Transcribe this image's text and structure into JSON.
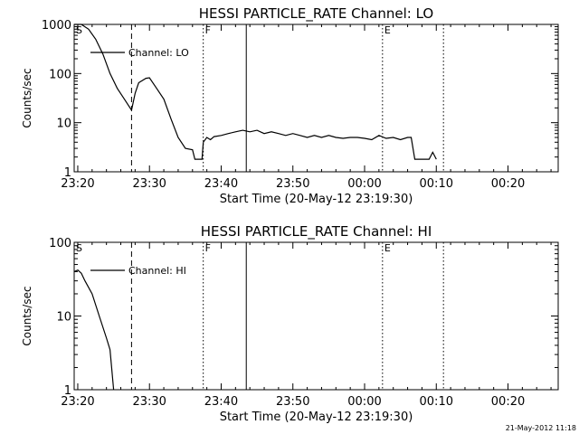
{
  "chart_data": [
    {
      "type": "line",
      "title": "HESSI PARTICLE_RATE Channel: LO",
      "ylabel": "Counts/sec",
      "xlabel": "Start Time (20-May-12 23:19:30)",
      "xlim": [
        "23:19:30",
        "00:27:00"
      ],
      "ylim": [
        1,
        1000
      ],
      "yscale": "log",
      "grid": false,
      "legend": {
        "position": "top-left",
        "label": "Channel: LO"
      },
      "x_ticks": [
        "23:20",
        "23:30",
        "23:40",
        "23:50",
        "00:00",
        "00:10",
        "00:20"
      ],
      "y_ticks": [
        "1",
        "10",
        "100",
        "1000"
      ],
      "markers": [
        {
          "label": "S",
          "time": "23:19:30",
          "style": "solid"
        },
        {
          "label": "",
          "time": "23:27:30",
          "style": "dashed"
        },
        {
          "label": "F",
          "time": "23:37:30",
          "style": "dotted"
        },
        {
          "label": "",
          "time": "23:43:30",
          "style": "solid"
        },
        {
          "label": "E",
          "time": "00:02:30",
          "style": "dotted"
        },
        {
          "label": "",
          "time": "00:11:00",
          "style": "dotted"
        }
      ],
      "series": [
        {
          "name": "Channel: LO",
          "segments": [
            [
              [
                "23:19:30",
                1000
              ],
              [
                "23:20:30",
                1000
              ],
              [
                "23:21:30",
                800
              ],
              [
                "23:22:30",
                500
              ],
              [
                "23:23:30",
                250
              ],
              [
                "23:24:30",
                100
              ],
              [
                "23:25:30",
                50
              ],
              [
                "23:26:30",
                30
              ],
              [
                "23:27:30",
                18
              ],
              [
                "23:28:00",
                40
              ],
              [
                "23:28:30",
                65
              ],
              [
                "23:29:30",
                80
              ],
              [
                "23:30:00",
                82
              ],
              [
                "23:31:00",
                50
              ],
              [
                "23:32:00",
                30
              ],
              [
                "23:33:00",
                12
              ],
              [
                "23:34:00",
                5
              ],
              [
                "23:35:00",
                3
              ],
              [
                "23:36:00",
                2.8
              ],
              [
                "23:36:20",
                1.8
              ],
              [
                "23:37:20",
                1.8
              ],
              [
                "23:37:30",
                4
              ]
            ],
            [
              [
                "23:37:30",
                4
              ],
              [
                "23:38:00",
                5
              ],
              [
                "23:38:30",
                4.5
              ],
              [
                "23:39:00",
                5.2
              ],
              [
                "23:40:00",
                5.5
              ],
              [
                "23:41:00",
                6
              ],
              [
                "23:42:00",
                6.5
              ],
              [
                "23:43:00",
                7
              ],
              [
                "23:44:00",
                6.5
              ],
              [
                "23:45:00",
                7
              ],
              [
                "23:46:00",
                6
              ],
              [
                "23:47:00",
                6.5
              ],
              [
                "23:48:00",
                6
              ],
              [
                "23:49:00",
                5.5
              ],
              [
                "23:50:00",
                6
              ],
              [
                "23:51:00",
                5.5
              ],
              [
                "23:52:00",
                5
              ],
              [
                "23:53:00",
                5.5
              ],
              [
                "23:54:00",
                5
              ],
              [
                "23:55:00",
                5.5
              ],
              [
                "23:56:00",
                5
              ],
              [
                "23:57:00",
                4.8
              ],
              [
                "23:58:00",
                5
              ],
              [
                "23:59:00",
                5
              ],
              [
                "00:00:00",
                4.8
              ],
              [
                "00:01:00",
                4.5
              ],
              [
                "00:02:00",
                5.5
              ],
              [
                "00:03:00",
                4.8
              ],
              [
                "00:04:00",
                5
              ],
              [
                "00:05:00",
                4.5
              ],
              [
                "00:06:00",
                5
              ],
              [
                "00:06:30",
                5
              ],
              [
                "00:07:00",
                1.8
              ],
              [
                "00:09:00",
                1.8
              ],
              [
                "00:09:30",
                2.5
              ],
              [
                "00:10:00",
                1.8
              ]
            ]
          ]
        }
      ]
    },
    {
      "type": "line",
      "title": "HESSI PARTICLE_RATE Channel: HI",
      "ylabel": "Counts/sec",
      "xlabel": "Start Time (20-May-12 23:19:30)",
      "xlim": [
        "23:19:30",
        "00:27:00"
      ],
      "ylim": [
        1,
        100
      ],
      "yscale": "log",
      "grid": false,
      "legend": {
        "position": "top-left",
        "label": "Channel: HI"
      },
      "x_ticks": [
        "23:20",
        "23:30",
        "23:40",
        "23:50",
        "00:00",
        "00:10",
        "00:20"
      ],
      "y_ticks": [
        "1",
        "10",
        "100"
      ],
      "markers": [
        {
          "label": "S",
          "time": "23:19:30",
          "style": "solid"
        },
        {
          "label": "",
          "time": "23:27:30",
          "style": "dashed"
        },
        {
          "label": "F",
          "time": "23:37:30",
          "style": "dotted"
        },
        {
          "label": "",
          "time": "23:43:30",
          "style": "solid"
        },
        {
          "label": "E",
          "time": "00:02:30",
          "style": "dotted"
        },
        {
          "label": "",
          "time": "00:11:00",
          "style": "dotted"
        }
      ],
      "series": [
        {
          "name": "Channel: HI",
          "segments": [
            [
              [
                "23:19:30",
                40
              ],
              [
                "23:20:00",
                42
              ],
              [
                "23:20:30",
                38
              ],
              [
                "23:21:00",
                30
              ],
              [
                "23:22:00",
                20
              ],
              [
                "23:23:00",
                10
              ],
              [
                "23:24:00",
                5
              ],
              [
                "23:24:30",
                3.5
              ],
              [
                "23:25:00",
                1
              ]
            ]
          ]
        }
      ]
    }
  ],
  "footer": {
    "timestamp": "21-May-2012 11:18"
  }
}
